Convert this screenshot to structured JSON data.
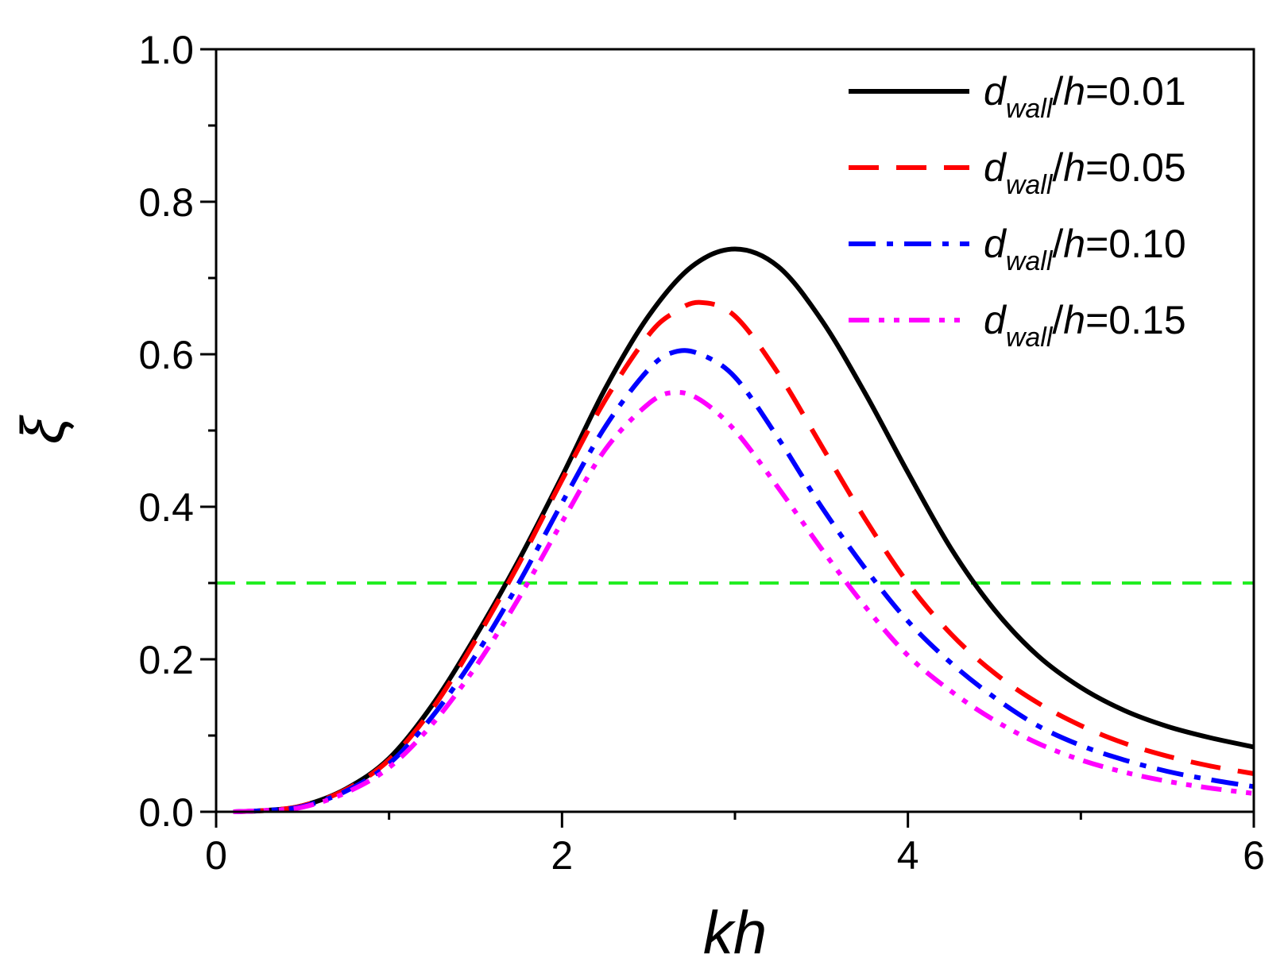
{
  "chart_data": {
    "type": "line",
    "title": "",
    "xlabel": "kh",
    "ylabel": "ξ",
    "xlim": [
      0,
      6
    ],
    "ylim": [
      0,
      1.0
    ],
    "x_ticks": [
      0,
      2,
      4,
      6
    ],
    "x_tick_labels": [
      "0",
      "2",
      "4",
      "6"
    ],
    "y_ticks": [
      0,
      0.2,
      0.4,
      0.6,
      0.8,
      1.0
    ],
    "y_tick_labels": [
      "0.0",
      "0.2",
      "0.4",
      "0.6",
      "0.8",
      "1.0"
    ],
    "legend_position": "top-right",
    "reference_line": {
      "y": 0.3,
      "color": "#22ee22",
      "style": "dashed"
    },
    "series": [
      {
        "legend": {
          "var": "d",
          "sub": "wall",
          "slash": "/",
          "var2": "h",
          "eq": "=0.01"
        },
        "color": "#000000",
        "style": "solid",
        "x": [
          0.1,
          0.3,
          0.5,
          0.75,
          1.0,
          1.25,
          1.5,
          1.75,
          2.0,
          2.25,
          2.5,
          2.75,
          3.0,
          3.25,
          3.5,
          3.75,
          4.0,
          4.25,
          4.5,
          4.75,
          5.0,
          5.25,
          5.5,
          5.75,
          6.0
        ],
        "y": [
          0.0,
          0.002,
          0.008,
          0.03,
          0.07,
          0.14,
          0.23,
          0.33,
          0.44,
          0.555,
          0.65,
          0.715,
          0.738,
          0.715,
          0.645,
          0.55,
          0.445,
          0.345,
          0.265,
          0.205,
          0.163,
          0.133,
          0.112,
          0.097,
          0.085
        ]
      },
      {
        "legend": {
          "var": "d",
          "sub": "wall",
          "slash": "/",
          "var2": "h",
          "eq": "=0.05"
        },
        "color": "#ff0000",
        "style": "dashed",
        "x": [
          0.1,
          0.3,
          0.5,
          0.75,
          1.0,
          1.25,
          1.5,
          1.75,
          2.0,
          2.25,
          2.5,
          2.65,
          2.8,
          3.0,
          3.25,
          3.5,
          3.75,
          4.0,
          4.25,
          4.5,
          4.75,
          5.0,
          5.25,
          5.5,
          5.75,
          6.0
        ],
        "y": [
          0.0,
          0.002,
          0.008,
          0.029,
          0.068,
          0.135,
          0.225,
          0.325,
          0.435,
          0.54,
          0.625,
          0.655,
          0.668,
          0.65,
          0.575,
          0.48,
          0.385,
          0.3,
          0.233,
          0.182,
          0.143,
          0.113,
          0.09,
          0.073,
          0.06,
          0.05
        ]
      },
      {
        "legend": {
          "var": "d",
          "sub": "wall",
          "slash": "/",
          "var2": "h",
          "eq": "=0.10"
        },
        "color": "#0000ff",
        "style": "dashdot",
        "x": [
          0.1,
          0.3,
          0.5,
          0.75,
          1.0,
          1.25,
          1.5,
          1.75,
          2.0,
          2.25,
          2.5,
          2.65,
          2.8,
          3.0,
          3.25,
          3.5,
          3.75,
          4.0,
          4.25,
          4.5,
          4.75,
          5.0,
          5.25,
          5.5,
          5.75,
          6.0
        ],
        "y": [
          0.0,
          0.002,
          0.007,
          0.027,
          0.063,
          0.125,
          0.205,
          0.3,
          0.405,
          0.505,
          0.58,
          0.603,
          0.6,
          0.57,
          0.49,
          0.4,
          0.32,
          0.25,
          0.195,
          0.15,
          0.113,
          0.087,
          0.068,
          0.053,
          0.042,
          0.033
        ]
      },
      {
        "legend": {
          "var": "d",
          "sub": "wall",
          "slash": "/",
          "var2": "h",
          "eq": "=0.15"
        },
        "color": "#ff00ff",
        "style": "dashdotdot",
        "x": [
          0.1,
          0.3,
          0.5,
          0.75,
          1.0,
          1.25,
          1.5,
          1.75,
          2.0,
          2.25,
          2.5,
          2.65,
          2.8,
          3.0,
          3.25,
          3.5,
          3.75,
          4.0,
          4.25,
          4.5,
          4.75,
          5.0,
          5.25,
          5.5,
          5.75,
          6.0
        ],
        "y": [
          0.0,
          0.002,
          0.006,
          0.025,
          0.058,
          0.115,
          0.19,
          0.28,
          0.38,
          0.475,
          0.535,
          0.55,
          0.54,
          0.5,
          0.425,
          0.345,
          0.27,
          0.205,
          0.158,
          0.12,
          0.09,
          0.068,
          0.052,
          0.04,
          0.031,
          0.024
        ]
      }
    ]
  }
}
